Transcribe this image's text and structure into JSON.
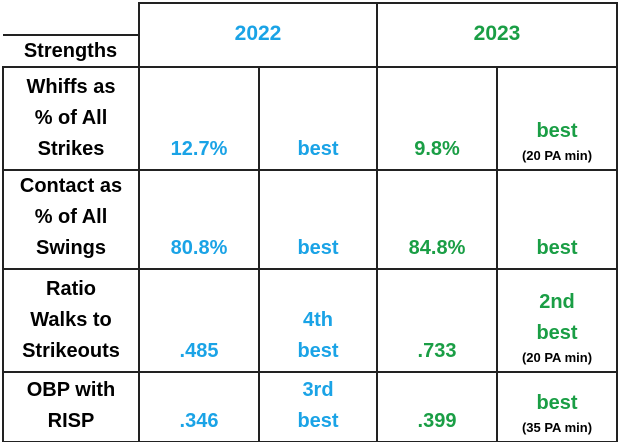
{
  "header": {
    "label": "Strengths",
    "years": [
      "2022",
      "2023"
    ]
  },
  "rows": [
    {
      "label": [
        "Whiffs as",
        "% of All",
        "Strikes"
      ],
      "y2022": {
        "value": "12.7%",
        "rank": [
          "best"
        ]
      },
      "y2023": {
        "value": "9.8%",
        "rank": [
          "best"
        ],
        "note": "(20 PA min)"
      }
    },
    {
      "label": [
        "Contact as",
        "% of All",
        "Swings"
      ],
      "y2022": {
        "value": "80.8%",
        "rank": [
          "best"
        ]
      },
      "y2023": {
        "value": "84.8%",
        "rank": [
          "best"
        ]
      }
    },
    {
      "label": [
        "Ratio",
        "Walks to",
        "Strikeouts"
      ],
      "y2022": {
        "value": ".485",
        "rank": [
          "4th",
          "best"
        ]
      },
      "y2023": {
        "value": ".733",
        "rank": [
          "2nd",
          "best"
        ],
        "note": "(20 PA min)"
      }
    },
    {
      "label": [
        "OBP with",
        "RISP"
      ],
      "y2022": {
        "value": ".346",
        "rank": [
          "3rd",
          "best"
        ]
      },
      "y2023": {
        "value": ".399",
        "rank": [
          "best"
        ],
        "note": "(35 PA min)"
      }
    }
  ]
}
